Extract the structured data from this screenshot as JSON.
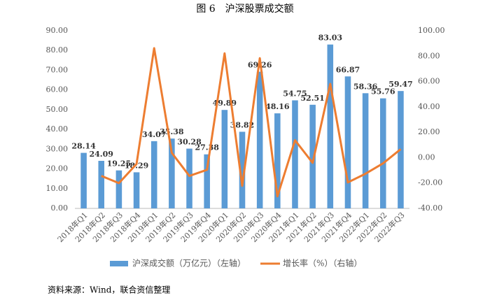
{
  "chart_data": {
    "type": "bar",
    "title": "图 6　沪深股票成交额",
    "categories": [
      "2018年Q1",
      "2018年Q2",
      "2018年Q3",
      "2018年Q4",
      "2019年Q1",
      "2019年Q2",
      "2019年Q3",
      "2019年Q4",
      "2020年Q1",
      "2020年Q2",
      "2020年Q3",
      "2020年Q4",
      "2021年Q1",
      "2021年Q2",
      "2021年Q3",
      "2021年Q4",
      "2022年Q1",
      "2022年Q2",
      "2022年Q3"
    ],
    "series": [
      {
        "name": "沪深成交额（万亿元）（左轴）",
        "type": "bar",
        "color": "#5b9bd5",
        "values": [
          28.14,
          24.09,
          19.25,
          18.29,
          34.07,
          35.38,
          30.28,
          27.38,
          49.89,
          38.82,
          69.26,
          48.16,
          54.75,
          52.51,
          83.03,
          66.87,
          58.36,
          55.76,
          59.47
        ]
      },
      {
        "name": "增长率（%）（右轴）",
        "type": "line",
        "axis": "y2",
        "color": "#ed7d31",
        "values": [
          null,
          -14.4,
          -20.1,
          -5.0,
          86.3,
          3.8,
          -14.4,
          -9.6,
          82.2,
          -22.2,
          78.4,
          -30.5,
          13.7,
          -4.1,
          58.1,
          -19.5,
          -12.7,
          -4.5,
          6.7
        ]
      }
    ],
    "ylim": [
      0,
      90
    ],
    "yticks": [
      {
        "value": 0,
        "label": "0.00"
      },
      {
        "value": 10,
        "label": "10.00"
      },
      {
        "value": 20,
        "label": "20.00"
      },
      {
        "value": 30,
        "label": "30.00"
      },
      {
        "value": 40,
        "label": "40.00"
      },
      {
        "value": 50,
        "label": "50.00"
      },
      {
        "value": 60,
        "label": "60.00"
      },
      {
        "value": 70,
        "label": "70.00"
      },
      {
        "value": 80,
        "label": "80.00"
      },
      {
        "value": 90,
        "label": "90.00"
      }
    ],
    "y2lim": [
      -40,
      100
    ],
    "y2ticks": [
      {
        "value": -40,
        "label": "-40.00"
      },
      {
        "value": -20,
        "label": "-20.00"
      },
      {
        "value": 0,
        "label": "0.00"
      },
      {
        "value": 20,
        "label": "20.00"
      },
      {
        "value": 40,
        "label": "40.00"
      },
      {
        "value": 60,
        "label": "60.00"
      },
      {
        "value": 80,
        "label": "80.00"
      },
      {
        "value": 100,
        "label": "100.00"
      }
    ],
    "grid": false,
    "legend": "bottom",
    "source": "资料来源：Wind，联合资信整理"
  }
}
